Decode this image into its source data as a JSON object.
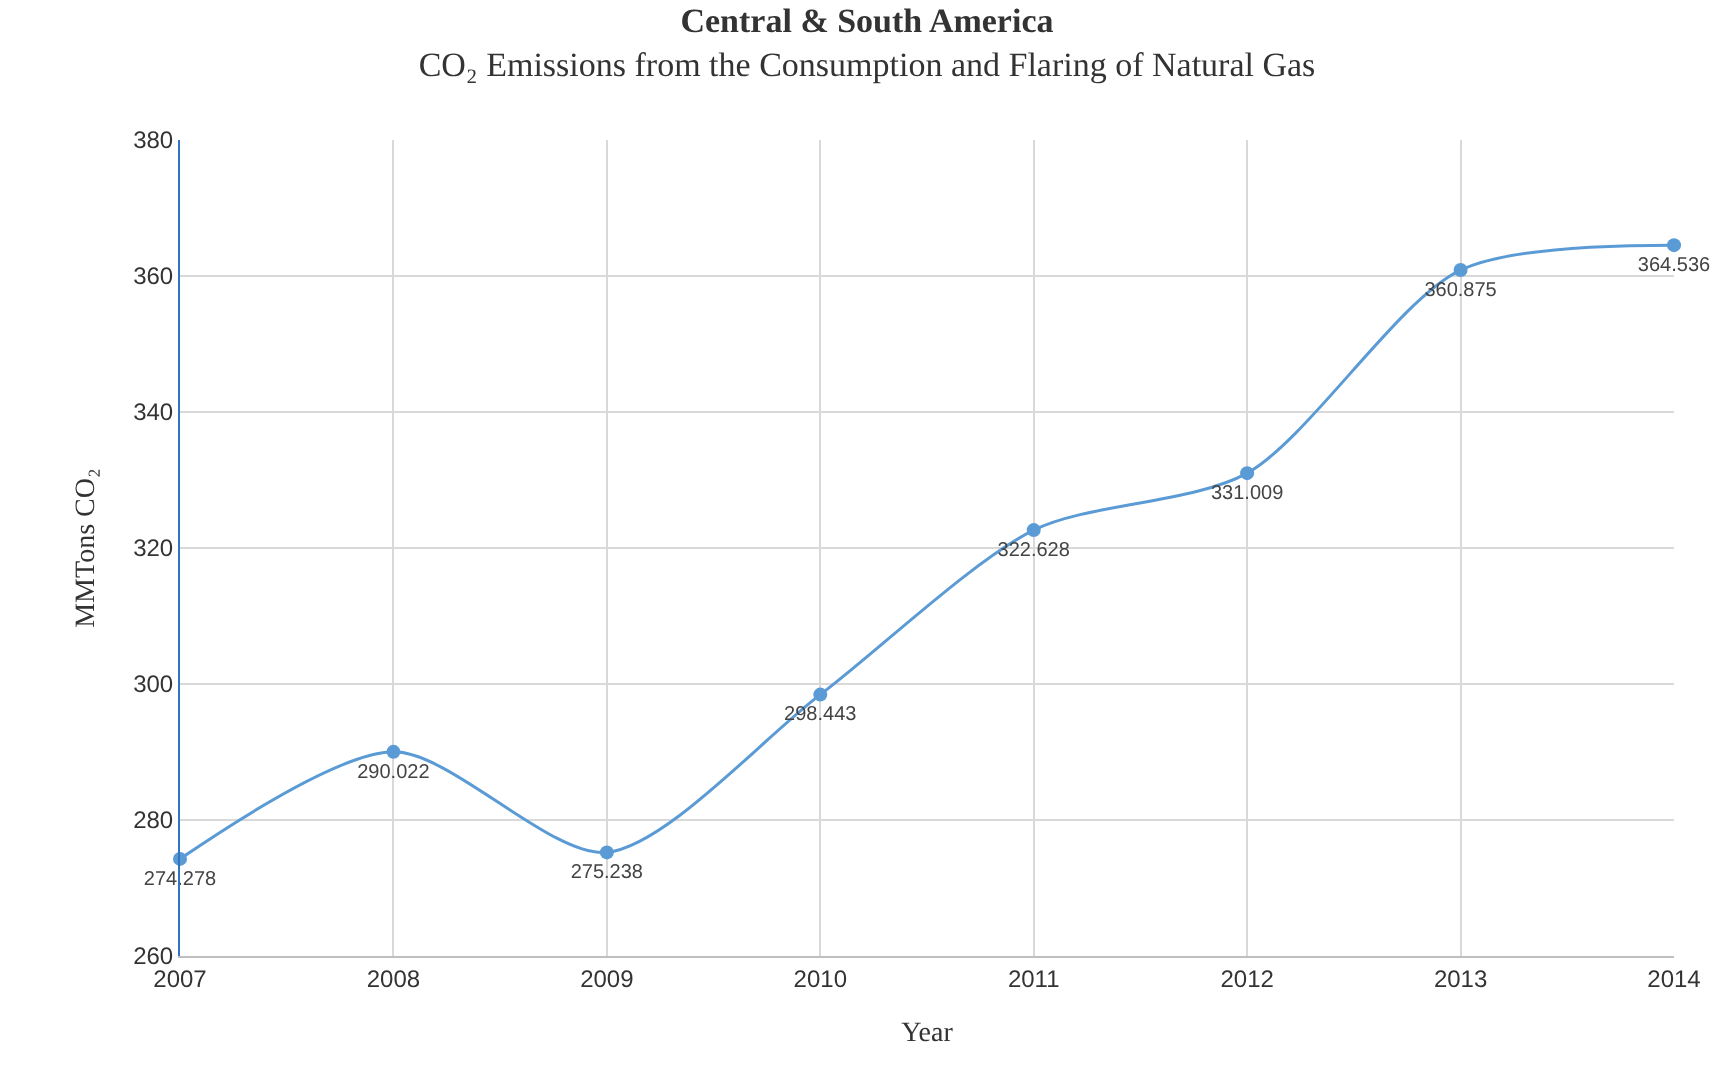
{
  "chart_data": {
    "type": "line",
    "title": "Central & South America",
    "subtitle": "CO₂ Emissions from the Consumption and Flaring of Natural Gas",
    "xlabel": "Year",
    "ylabel": "MMTons CO₂",
    "x": [
      2007,
      2008,
      2009,
      2010,
      2011,
      2012,
      2013,
      2014
    ],
    "series": [
      {
        "color": "#5b9bd5",
        "values": [
          274.278,
          290.022,
          275.238,
          298.443,
          322.628,
          331.009,
          360.875,
          364.536
        ]
      }
    ],
    "xlim": [
      2007,
      2014
    ],
    "xticks": [
      2007,
      2008,
      2009,
      2010,
      2011,
      2012,
      2013,
      2014
    ],
    "ylim": [
      260,
      380
    ],
    "yticks": [
      260,
      280,
      300,
      320,
      340,
      360,
      380
    ],
    "grid": true,
    "marker": "circle",
    "line_style": "solid",
    "data_labels": true
  }
}
